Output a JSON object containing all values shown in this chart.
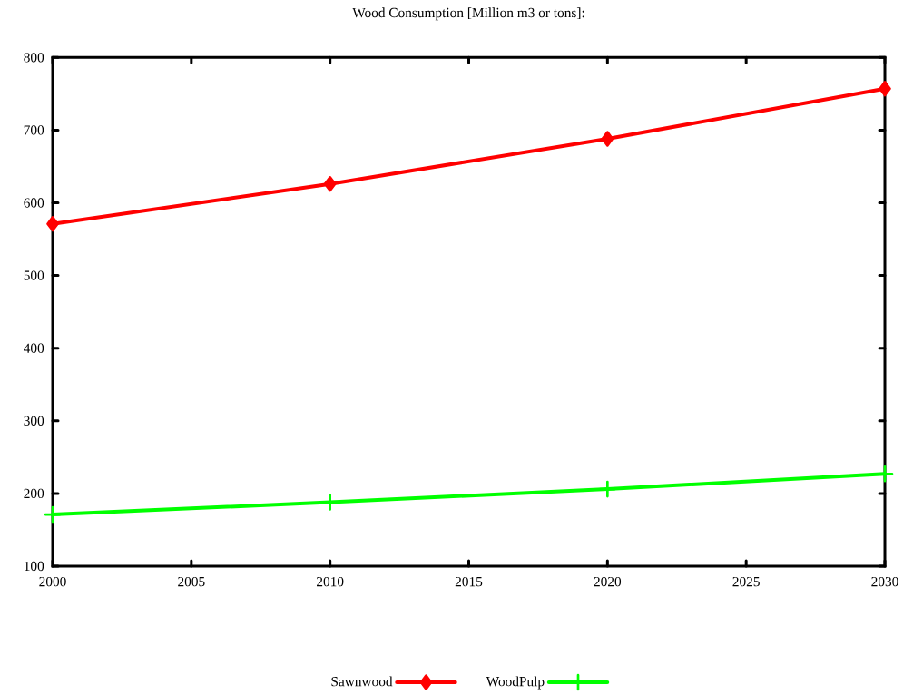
{
  "chart_data": {
    "type": "line",
    "title": "Wood Consumption [Million m3 or tons]:",
    "x": [
      2000,
      2010,
      2020,
      2030
    ],
    "series": [
      {
        "name": "Sawnwood",
        "color": "#ff0000",
        "marker": "diamond",
        "values": [
          571,
          626,
          688,
          757
        ]
      },
      {
        "name": "WoodPulp",
        "color": "#00ff00",
        "marker": "cross",
        "values": [
          171,
          188,
          206,
          227
        ]
      }
    ],
    "xlim": [
      2000,
      2030
    ],
    "xticks": [
      2000,
      2005,
      2010,
      2015,
      2020,
      2025,
      2030
    ],
    "ylim": [
      100,
      800
    ],
    "yticks": [
      100,
      200,
      300,
      400,
      500,
      600,
      700,
      800
    ],
    "legend": "bottom",
    "line_style": "solid"
  }
}
